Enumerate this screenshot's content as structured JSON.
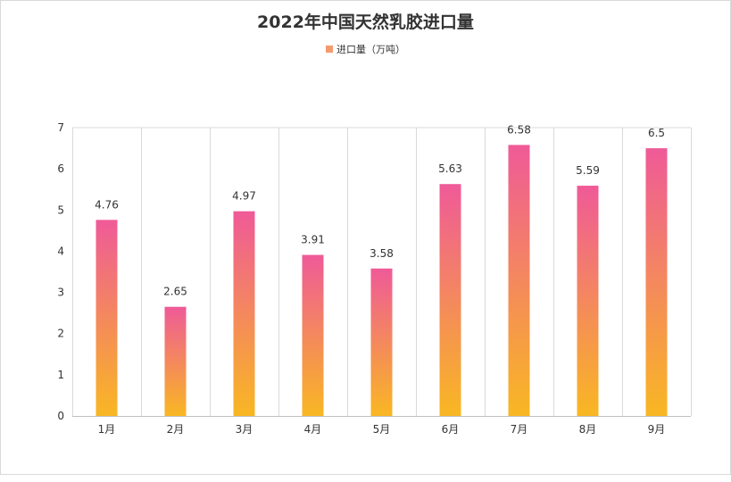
{
  "chart_data": {
    "type": "bar",
    "title": "2022年中国天然乳胶进口量",
    "categories": [
      "1月",
      "2月",
      "3月",
      "4月",
      "5月",
      "6月",
      "7月",
      "8月",
      "9月"
    ],
    "series": [
      {
        "name": "进口量（万吨）",
        "values": [
          4.76,
          2.65,
          4.97,
          3.91,
          3.58,
          5.63,
          6.58,
          5.59,
          6.5
        ]
      }
    ],
    "data_labels": [
      "4.76",
      "2.65",
      "4.97",
      "3.91",
      "3.58",
      "5.63",
      "6.58",
      "5.59",
      "6.5"
    ],
    "ylim": [
      0,
      7
    ],
    "yticks": [
      "0",
      "1",
      "2",
      "3",
      "4",
      "5",
      "6",
      "7"
    ],
    "grid": "vertical category separators",
    "legend_position": "top",
    "colors": {
      "bar_top": "#ef5a98",
      "bar_bottom": "#f9b723",
      "swatch": "#f59a6f"
    }
  }
}
